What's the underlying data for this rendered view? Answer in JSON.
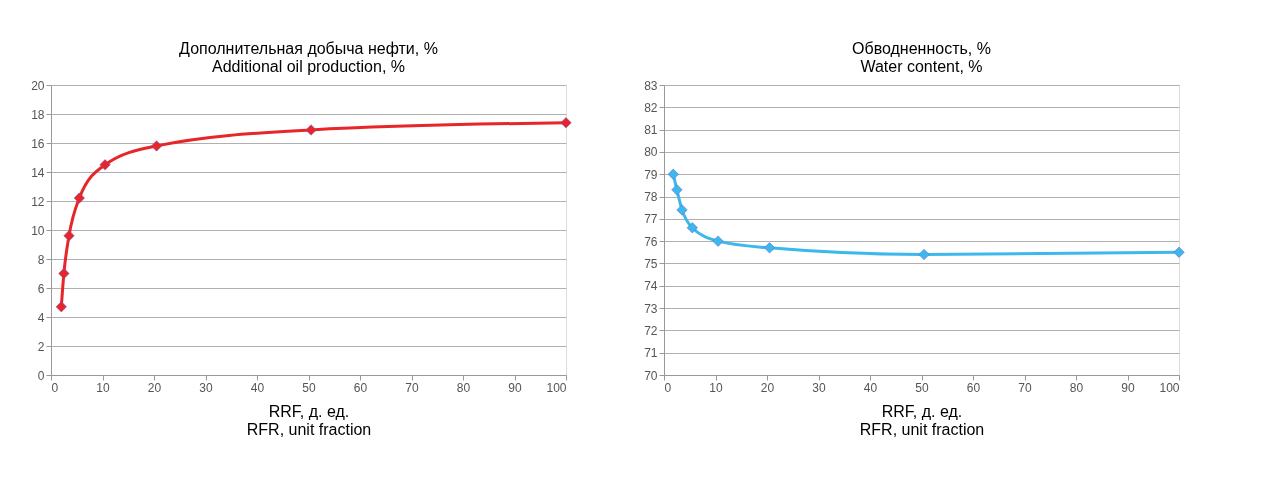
{
  "chart_data": [
    {
      "type": "line",
      "title": [
        "Дополнительная добыча нефти, %",
        "Additional oil production, %"
      ],
      "xlabel": [
        "RRF, д. ед.",
        "RFR, unit fraction"
      ],
      "x": [
        2,
        2.5,
        3.5,
        5.5,
        10.5,
        20.5,
        50.5,
        100
      ],
      "series": [
        {
          "color": "#e8262a",
          "values": [
            4.7,
            7.0,
            9.6,
            12.2,
            14.5,
            15.8,
            16.9,
            17.4
          ]
        }
      ],
      "xlim": [
        0,
        100
      ],
      "xticks": [
        0,
        10,
        20,
        30,
        40,
        50,
        60,
        70,
        80,
        90,
        100
      ],
      "ylim": [
        0,
        20
      ],
      "yticks": [
        0,
        2,
        4,
        6,
        8,
        10,
        12,
        14,
        16,
        18,
        20
      ],
      "grid": "y",
      "marker": "diamond",
      "line_style": "solid"
    },
    {
      "type": "line",
      "title": [
        "Обводненность, %",
        "Water content, %"
      ],
      "xlabel": [
        "RRF, д. ед.",
        "RFR, unit fraction"
      ],
      "x": [
        1.8,
        2.5,
        3.5,
        5.5,
        10.5,
        20.5,
        50.5,
        100
      ],
      "series": [
        {
          "color": "#3db8ec",
          "values": [
            79.0,
            78.3,
            77.4,
            76.6,
            76.0,
            75.7,
            75.4,
            75.5
          ]
        }
      ],
      "xlim": [
        0,
        100
      ],
      "xticks": [
        0,
        10,
        20,
        30,
        40,
        50,
        60,
        70,
        80,
        90,
        100
      ],
      "ylim": [
        70,
        83
      ],
      "yticks": [
        70,
        71,
        72,
        73,
        74,
        75,
        76,
        77,
        78,
        79,
        80,
        81,
        82,
        83
      ],
      "grid": "y",
      "marker": "diamond",
      "line_style": "solid"
    }
  ]
}
